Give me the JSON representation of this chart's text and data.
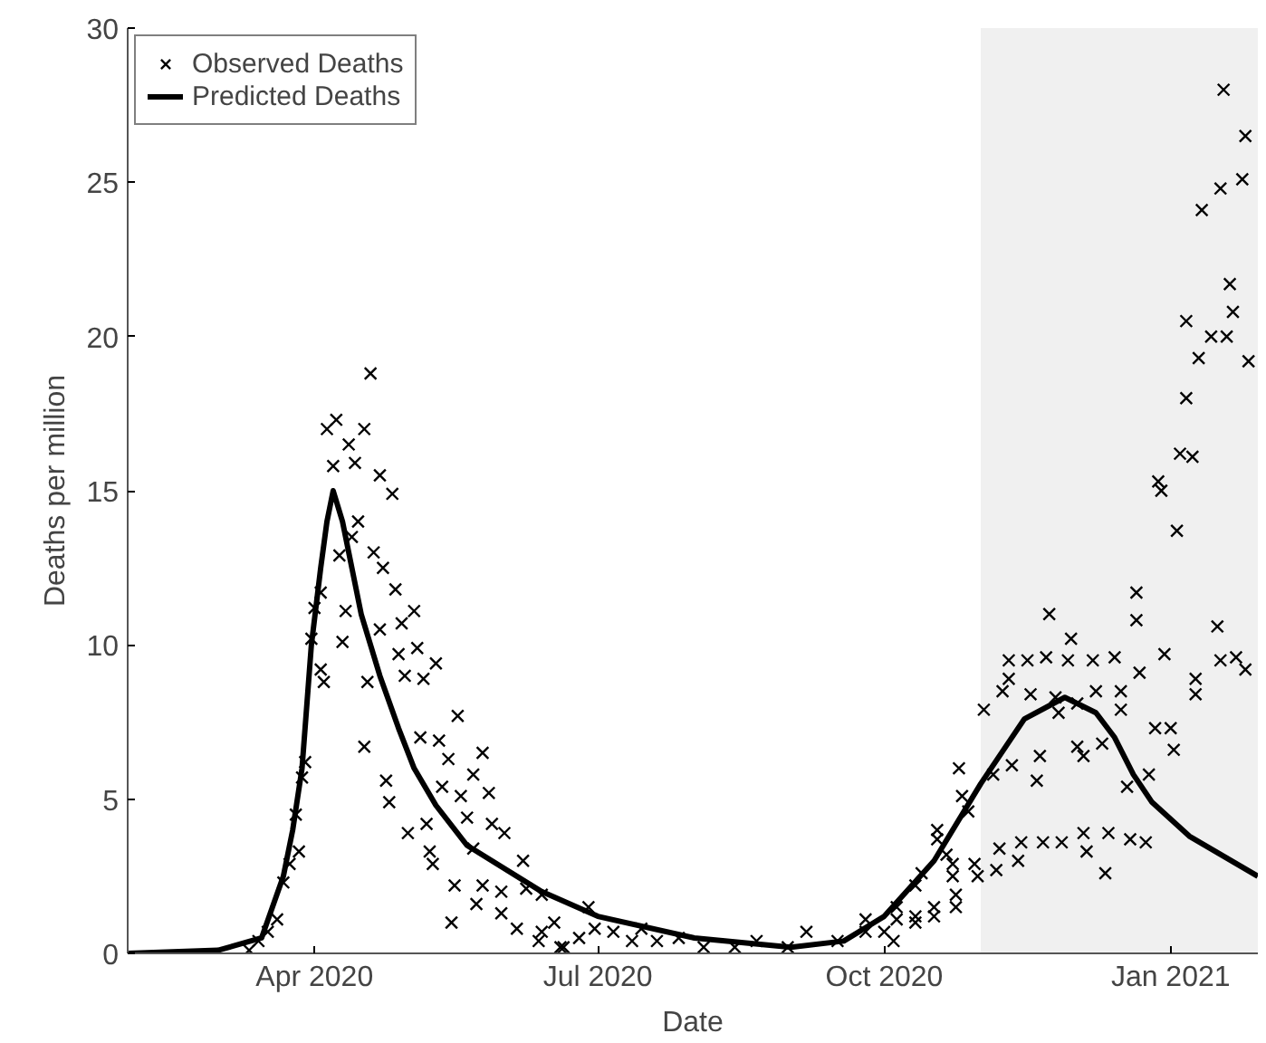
{
  "chart_data": {
    "type": "scatter",
    "xlabel": "Date",
    "ylabel": "Deaths per million",
    "xlim": [
      "2020-02-01",
      "2021-01-29"
    ],
    "xticks": [
      {
        "value": "2020-04-01",
        "label": "Apr 2020"
      },
      {
        "value": "2020-07-01",
        "label": "Jul 2020"
      },
      {
        "value": "2020-10-01",
        "label": "Oct 2020"
      },
      {
        "value": "2021-01-01",
        "label": "Jan 2021"
      }
    ],
    "ylim": [
      0,
      30
    ],
    "yticks": [
      0,
      5,
      10,
      15,
      20,
      25,
      30
    ],
    "grid": false,
    "legend": "top left",
    "bands": [
      {
        "axis": "x",
        "from": "2020-11-01",
        "to": "2021-01-29",
        "color": "#f0f0f0"
      }
    ],
    "series": [
      {
        "name": "Observed Deaths",
        "marker": "cross",
        "color": "#000000",
        "x": [
          "2020-04-19",
          "2020-04-05",
          "2020-04-08",
          "2020-04-17",
          "2020-04-12",
          "2020-04-07",
          "2020-04-14",
          "2020-04-22",
          "2020-04-26",
          "2020-04-15",
          "2020-04-13",
          "2020-04-09",
          "2020-04-20",
          "2020-04-23",
          "2020-04-27",
          "2020-05-03",
          "2020-04-11",
          "2020-04-03",
          "2020-04-01",
          "2020-04-29",
          "2020-04-22",
          "2020-03-31",
          "2020-04-10",
          "2020-05-04",
          "2020-04-28",
          "2020-05-10",
          "2020-04-03",
          "2020-04-04",
          "2020-04-18",
          "2020-04-30",
          "2020-05-06",
          "2020-05-17",
          "2020-04-17",
          "2020-05-05",
          "2020-05-11",
          "2020-05-25",
          "2020-05-14",
          "2020-03-29",
          "2020-03-28",
          "2020-05-22",
          "2020-04-24",
          "2020-05-27",
          "2020-04-25",
          "2020-05-12",
          "2020-05-18",
          "2020-05-20",
          "2020-03-26",
          "2020-05-01",
          "2020-05-07",
          "2020-05-28",
          "2020-06-01",
          "2020-05-22",
          "2020-05-08",
          "2020-03-27",
          "2020-05-09",
          "2020-06-07",
          "2020-03-24",
          "2020-03-22",
          "2020-05-16",
          "2020-05-25",
          "2020-05-31",
          "2020-05-23",
          "2020-06-08",
          "2020-05-15",
          "2020-05-31",
          "2020-06-05",
          "2020-06-12",
          "2020-06-17",
          "2020-06-20",
          "2020-03-20",
          "2020-03-17",
          "2020-03-11",
          "2020-03-14",
          "2020-06-13",
          "2020-06-19",
          "2020-06-28",
          "2020-06-25",
          "2020-07-06",
          "2020-07-12",
          "2020-07-20",
          "2020-07-27",
          "2020-08-04",
          "2020-08-14",
          "2020-08-21",
          "2020-08-31",
          "2020-09-06",
          "2020-09-16",
          "2020-09-25",
          "2020-10-04",
          "2020-10-11",
          "2020-10-17",
          "2020-10-24",
          "2020-10-23",
          "2020-10-18",
          "2020-10-11",
          "2020-10-05",
          "2020-06-30",
          "2020-07-15",
          "2020-06-13",
          "2021-01-18",
          "2021-01-25",
          "2021-01-17",
          "2021-01-24",
          "2021-01-11",
          "2021-01-20",
          "2021-01-21",
          "2021-01-06",
          "2021-01-14",
          "2021-01-19",
          "2021-01-10",
          "2021-01-26",
          "2021-01-06",
          "2021-01-04",
          "2021-01-08",
          "2020-12-28",
          "2020-12-29",
          "2021-01-03",
          "2020-12-21",
          "2020-12-21",
          "2020-11-23",
          "2020-11-30",
          "2021-01-16",
          "2020-11-10",
          "2020-11-16",
          "2020-11-22",
          "2020-11-29",
          "2020-12-07",
          "2020-12-14",
          "2020-12-30",
          "2021-01-17",
          "2021-01-22",
          "2020-12-22",
          "2020-11-10",
          "2021-01-09",
          "2020-11-08",
          "2021-01-09",
          "2020-11-17",
          "2020-12-16",
          "2020-12-08",
          "2020-11-25",
          "2020-12-02",
          "2020-11-02",
          "2020-11-26",
          "2020-12-16",
          "2020-12-27",
          "2021-01-01",
          "2021-01-02",
          "2020-12-10",
          "2020-12-02",
          "2020-12-04",
          "2020-11-20",
          "2020-11-11",
          "2020-11-19",
          "2020-12-18",
          "2020-12-25",
          "2020-10-25",
          "2020-11-05",
          "2020-10-18",
          "2020-10-26",
          "2020-10-28",
          "2020-11-07",
          "2020-11-14",
          "2020-11-21",
          "2020-11-27",
          "2020-12-04",
          "2020-12-12",
          "2020-12-19",
          "2020-12-24",
          "2020-12-05",
          "2020-12-11",
          "2020-11-06",
          "2020-11-13",
          "2020-10-31",
          "2020-10-30",
          "2020-10-23",
          "2020-10-24",
          "2020-10-17",
          "2020-10-13",
          "2020-10-21",
          "2020-10-11",
          "2020-10-05",
          "2020-10-01",
          "2020-09-25",
          "2021-01-25"
        ],
        "values": [
          18.8,
          17.0,
          17.3,
          17.0,
          16.5,
          15.8,
          15.9,
          15.5,
          14.9,
          14.0,
          13.5,
          12.9,
          13.0,
          12.5,
          11.8,
          11.1,
          11.1,
          11.7,
          11.2,
          10.7,
          10.5,
          10.2,
          10.1,
          9.9,
          9.7,
          9.4,
          9.2,
          8.8,
          8.8,
          9.0,
          8.9,
          7.7,
          6.7,
          7.0,
          6.9,
          6.5,
          6.3,
          6.2,
          5.7,
          5.8,
          5.6,
          5.2,
          4.9,
          5.4,
          5.1,
          4.4,
          4.5,
          3.9,
          4.2,
          4.2,
          3.9,
          3.4,
          3.3,
          3.3,
          2.9,
          3.0,
          2.9,
          2.3,
          2.2,
          2.2,
          2.0,
          1.6,
          2.1,
          1.0,
          1.3,
          0.8,
          0.4,
          1.0,
          0.2,
          1.1,
          0.7,
          0.1,
          0.4,
          1.9,
          0.2,
          1.5,
          0.5,
          0.7,
          0.4,
          0.4,
          0.5,
          0.2,
          0.2,
          0.4,
          0.2,
          0.7,
          0.4,
          1.1,
          0.4,
          1.0,
          1.2,
          1.5,
          2.5,
          3.7,
          2.2,
          1.1,
          0.8,
          0.8,
          0.7,
          28.0,
          26.5,
          24.8,
          25.1,
          24.1,
          21.7,
          20.8,
          20.5,
          20.0,
          20.0,
          19.3,
          19.2,
          18.0,
          16.2,
          16.1,
          15.3,
          15.0,
          13.7,
          11.7,
          10.8,
          11.0,
          10.2,
          10.6,
          9.5,
          9.5,
          9.6,
          9.5,
          9.5,
          9.6,
          9.7,
          9.5,
          9.6,
          9.1,
          8.9,
          8.9,
          8.5,
          8.4,
          8.4,
          8.5,
          8.5,
          8.3,
          8.1,
          7.9,
          7.8,
          7.9,
          7.3,
          7.3,
          6.6,
          6.8,
          6.7,
          6.4,
          6.4,
          6.1,
          5.6,
          5.4,
          5.8,
          6.0,
          5.8,
          4.0,
          5.1,
          4.6,
          3.4,
          3.6,
          3.6,
          3.6,
          3.9,
          3.9,
          3.7,
          3.6,
          3.3,
          2.6,
          2.7,
          3.0,
          2.5,
          2.9,
          2.9,
          1.9,
          1.5,
          2.6,
          3.2,
          1.2,
          1.5,
          0.7,
          0.7,
          9.2
        ]
      },
      {
        "name": "Predicted Deaths",
        "type": "line",
        "line_style": "solid",
        "color": "#000000",
        "x": [
          "2020-02-01",
          "2020-03-01",
          "2020-03-15",
          "2020-03-22",
          "2020-03-25",
          "2020-03-28",
          "2020-03-31",
          "2020-04-03",
          "2020-04-05",
          "2020-04-07",
          "2020-04-10",
          "2020-04-16",
          "2020-04-22",
          "2020-04-28",
          "2020-05-03",
          "2020-05-10",
          "2020-05-20",
          "2020-06-13",
          "2020-07-01",
          "2020-08-01",
          "2020-09-01",
          "2020-09-18",
          "2020-10-01",
          "2020-10-17",
          "2020-11-01",
          "2020-11-15",
          "2020-11-28",
          "2020-12-08",
          "2020-12-14",
          "2020-12-20",
          "2020-12-26",
          "2021-01-07",
          "2021-01-29"
        ],
        "values": [
          0,
          0.1,
          0.5,
          2.5,
          4.0,
          6.0,
          10.0,
          12.5,
          14.0,
          15.0,
          14.0,
          11.0,
          9.0,
          7.3,
          6.0,
          4.8,
          3.5,
          2.0,
          1.2,
          0.5,
          0.2,
          0.4,
          1.2,
          3.0,
          5.5,
          7.6,
          8.3,
          7.8,
          7.0,
          5.8,
          4.9,
          3.8,
          2.5
        ]
      }
    ]
  }
}
